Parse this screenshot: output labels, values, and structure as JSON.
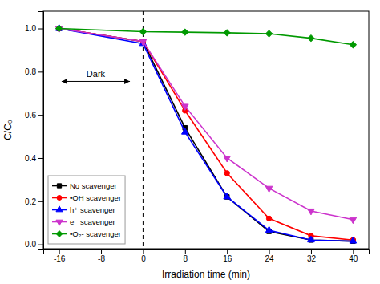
{
  "chart_data": {
    "type": "line",
    "x_label": "Irradiation time (min)",
    "y_label": "C/C₀",
    "x": [
      -16,
      0,
      8,
      16,
      24,
      32,
      40
    ],
    "series": [
      {
        "name": "No scavenger",
        "color": "#000000",
        "marker": "square",
        "values": [
          1.0,
          0.94,
          0.54,
          0.22,
          0.06,
          0.02,
          0.015
        ]
      },
      {
        "name": "•OH scavenger",
        "color": "#ff0000",
        "marker": "circle",
        "values": [
          1.0,
          0.94,
          0.62,
          0.33,
          0.12,
          0.04,
          0.02
        ]
      },
      {
        "name": "h⁺ scavenger",
        "color": "#0000ff",
        "marker": "triangle-up",
        "values": [
          1.0,
          0.93,
          0.52,
          0.22,
          0.065,
          0.02,
          0.015
        ]
      },
      {
        "name": "e⁻ scavenger",
        "color": "#cc33cc",
        "marker": "triangle-down",
        "values": [
          1.0,
          0.94,
          0.64,
          0.4,
          0.26,
          0.155,
          0.115
        ]
      },
      {
        "name": "•O₂- scavenger",
        "color": "#009900",
        "marker": "diamond",
        "values": [
          1.0,
          0.985,
          0.983,
          0.98,
          0.976,
          0.955,
          0.925
        ]
      }
    ],
    "xlim": [
      -19,
      43
    ],
    "ylim": [
      -0.02,
      1.08
    ],
    "xticks": [
      -16,
      -8,
      0,
      8,
      16,
      24,
      32,
      40
    ],
    "yticks": [
      {
        "value": 0,
        "label": "0.0"
      },
      0.2,
      0.4,
      0.6,
      0.8,
      {
        "value": 1,
        "label": "1.0"
      }
    ],
    "vlines": [
      0
    ],
    "annotations": [
      {
        "text": "Dark",
        "x": [
          -15.5,
          -2.5
        ],
        "y": 0.755
      }
    ],
    "legend": "lower left"
  }
}
